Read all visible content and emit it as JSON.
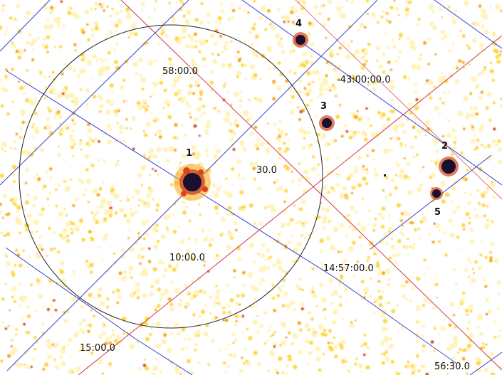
{
  "image": {
    "colormap": [
      "#ffffff",
      "#fff3b8",
      "#ffd84a",
      "#f7a516",
      "#d5461e",
      "#1a0f2e"
    ],
    "grid_colors": {
      "ra_lines": "#3a3fd0",
      "dec_lines": "#d03a4a"
    },
    "circle_color": "#222222"
  },
  "coordinate_labels": {
    "dec_58": "58:00.0",
    "dec_43": "-43:00:00.0",
    "sec_30": "30.0",
    "min_10": "10:00.0",
    "ra_1457": "14:57:00.0",
    "ra_15": "15:00.0",
    "ra_5630": "56:30.0"
  },
  "sources": [
    {
      "id": "1",
      "label": "1"
    },
    {
      "id": "2",
      "label": "2"
    },
    {
      "id": "3",
      "label": "3"
    },
    {
      "id": "4",
      "label": "4"
    },
    {
      "id": "5",
      "label": "5"
    }
  ]
}
